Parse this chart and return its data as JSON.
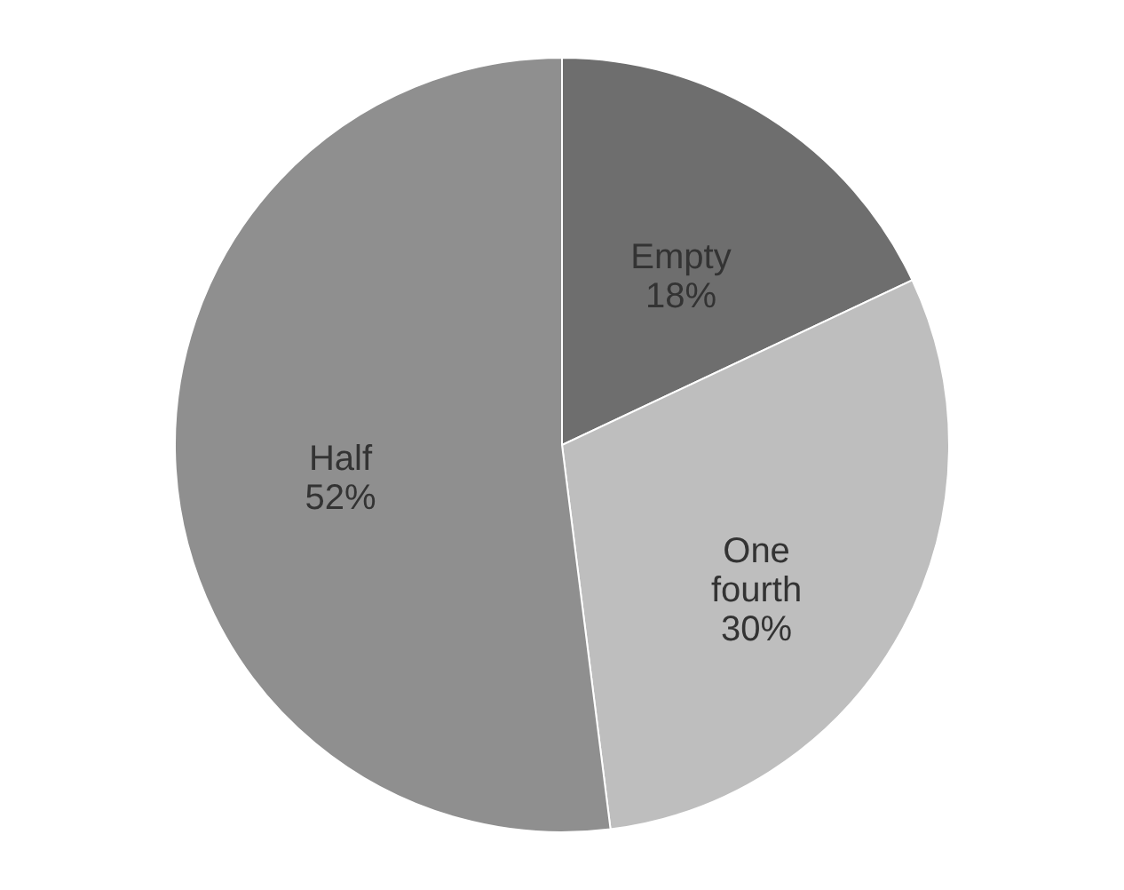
{
  "chart_data": {
    "type": "pie",
    "categories": [
      "Empty",
      "One fourth",
      "Half"
    ],
    "values": [
      18,
      30,
      52
    ],
    "colors": [
      "#6e6e6e",
      "#bebebe",
      "#8f8f8f"
    ],
    "value_labels": [
      "18%",
      "30%",
      "52%"
    ],
    "legend": false
  }
}
